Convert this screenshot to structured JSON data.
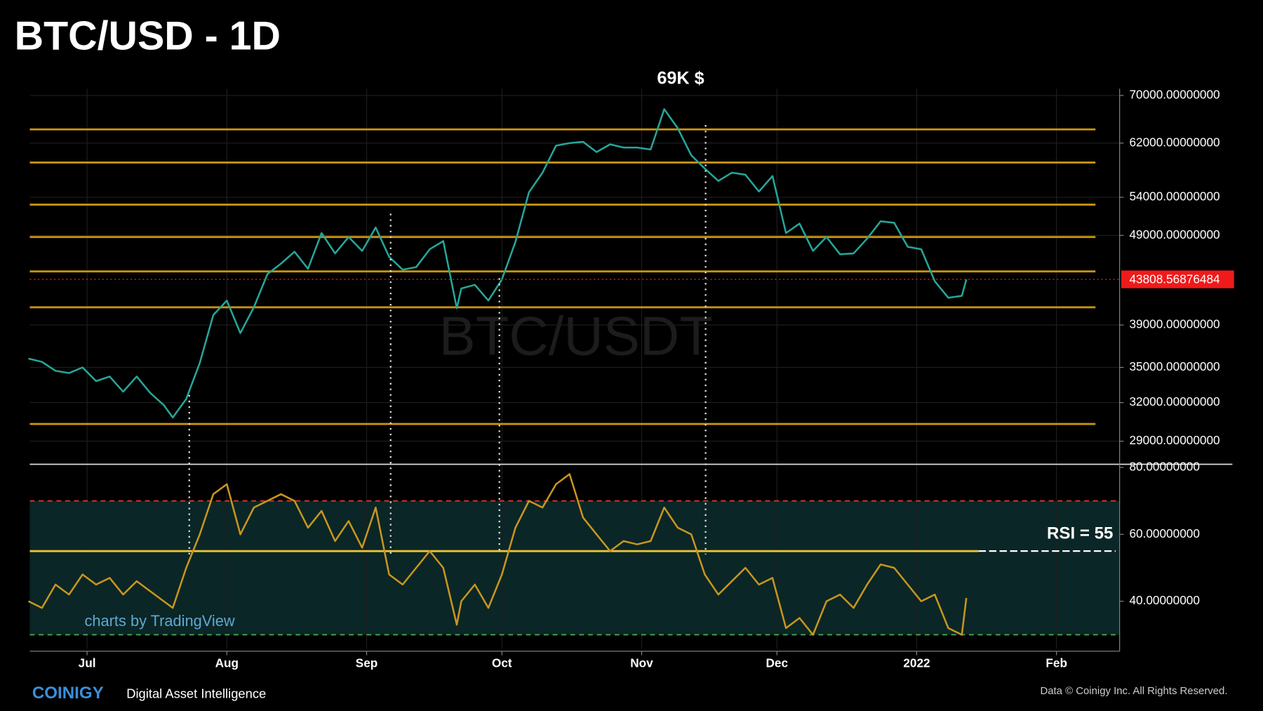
{
  "chart_data": [
    {
      "type": "line",
      "title": "BTC/USD - 1D",
      "log": true,
      "color": "#26a69a",
      "annotations": {
        "peak": "69K $",
        "watermark": "BTC/USDT"
      },
      "x": [
        -13,
        -10,
        -7,
        -4,
        -1,
        2,
        5,
        8,
        11,
        14,
        17,
        19,
        22,
        25,
        28,
        31,
        34,
        37,
        40,
        43,
        46,
        49,
        52,
        55,
        58,
        61,
        64,
        67,
        70,
        73,
        76,
        79,
        82,
        83,
        86,
        89,
        92,
        95,
        98,
        101,
        104,
        107,
        110,
        113,
        116,
        119,
        122,
        125,
        128,
        131,
        134,
        137,
        140,
        143,
        146,
        149,
        152,
        155,
        158,
        161,
        164,
        167,
        170,
        173,
        176,
        179,
        182,
        185,
        188,
        191,
        194,
        195
      ],
      "values": [
        35800,
        35500,
        34700,
        34500,
        35000,
        33800,
        34200,
        32900,
        34200,
        32800,
        31800,
        30800,
        32300,
        35400,
        40000,
        41500,
        38200,
        40800,
        44400,
        45600,
        47000,
        45000,
        49300,
        46800,
        48800,
        47100,
        50000,
        46400,
        44900,
        45200,
        47300,
        48300,
        40700,
        42800,
        43200,
        41500,
        43800,
        48200,
        54700,
        57500,
        61600,
        62000,
        62200,
        60600,
        61800,
        61300,
        61300,
        61000,
        67600,
        64400,
        60100,
        58100,
        56300,
        57500,
        57200,
        54800,
        57000,
        49300,
        50500,
        47100,
        48800,
        46700,
        46800,
        48600,
        50800,
        50600,
        47600,
        47300,
        43600,
        41800,
        42000,
        43800
      ],
      "xlim": [
        -12.7,
        229
      ],
      "ylim": [
        27400,
        71200
      ],
      "yticks": [
        {
          "value": 70000,
          "label": "70000.00000000"
        },
        {
          "value": 62000,
          "label": "62000.00000000"
        },
        {
          "value": 54000,
          "label": "54000.00000000"
        },
        {
          "value": 49000,
          "label": "49000.00000000"
        },
        {
          "value": 39000,
          "label": "39000.00000000"
        },
        {
          "value": 35000,
          "label": "35000.00000000"
        },
        {
          "value": 32000,
          "label": "32000.00000000"
        },
        {
          "value": 29000,
          "label": "29000.00000000"
        }
      ],
      "levels": [
        64200,
        59000,
        53000,
        48800,
        44700,
        40800,
        30300
      ],
      "level_color": "#c8930f",
      "last_price": 43808.56876484,
      "last_price_color": "#f01a1a",
      "grid": true
    },
    {
      "type": "line",
      "color": "#c8961e",
      "annotations": {
        "rsi": "RSI = 55",
        "credit": "charts by TradingView"
      },
      "x": [
        -13,
        -10,
        -7,
        -4,
        -1,
        2,
        5,
        8,
        11,
        14,
        17,
        19,
        22,
        25,
        28,
        31,
        34,
        37,
        40,
        43,
        46,
        49,
        52,
        55,
        58,
        61,
        64,
        67,
        70,
        73,
        76,
        79,
        82,
        83,
        86,
        89,
        92,
        95,
        98,
        101,
        104,
        107,
        110,
        113,
        116,
        119,
        122,
        125,
        128,
        131,
        134,
        137,
        140,
        143,
        146,
        149,
        152,
        155,
        158,
        161,
        164,
        167,
        170,
        173,
        176,
        179,
        182,
        185,
        188,
        191,
        194,
        195
      ],
      "values": [
        40,
        38,
        45,
        42,
        48,
        45,
        47,
        42,
        46,
        43,
        40,
        38,
        50,
        60,
        72,
        75,
        60,
        68,
        70,
        72,
        70,
        62,
        67,
        58,
        64,
        56,
        68,
        48,
        45,
        50,
        55,
        50,
        33,
        40,
        45,
        38,
        48,
        62,
        70,
        68,
        75,
        78,
        65,
        60,
        55,
        58,
        57,
        58,
        68,
        62,
        60,
        48,
        42,
        46,
        50,
        45,
        47,
        32,
        35,
        30,
        40,
        42,
        38,
        45,
        51,
        50,
        45,
        40,
        42,
        32,
        30,
        41
      ],
      "xlim": [
        -12.7,
        229
      ],
      "ylim": [
        25.8,
        80.7
      ],
      "xticks": [
        {
          "value": 0,
          "label": "Jul"
        },
        {
          "value": 31,
          "label": "Aug"
        },
        {
          "value": 62,
          "label": "Sep"
        },
        {
          "value": 92,
          "label": "Oct"
        },
        {
          "value": 123,
          "label": "Nov"
        },
        {
          "value": 153,
          "label": "Dec"
        },
        {
          "value": 184,
          "label": "2022"
        },
        {
          "value": 215,
          "label": "Feb"
        }
      ],
      "yticks": [
        {
          "value": 80,
          "label": "80.00000000"
        },
        {
          "value": 60,
          "label": "60.00000000"
        },
        {
          "value": 40,
          "label": "40.00000000"
        }
      ],
      "overbought": 70,
      "oversold": 30,
      "rsi_level": 55,
      "grid": true
    }
  ],
  "footer": {
    "brand": "COINIGY",
    "tagline": "Digital Asset Intelligence",
    "copyright": "Data © Coinigy Inc.  All Rights Reserved."
  }
}
